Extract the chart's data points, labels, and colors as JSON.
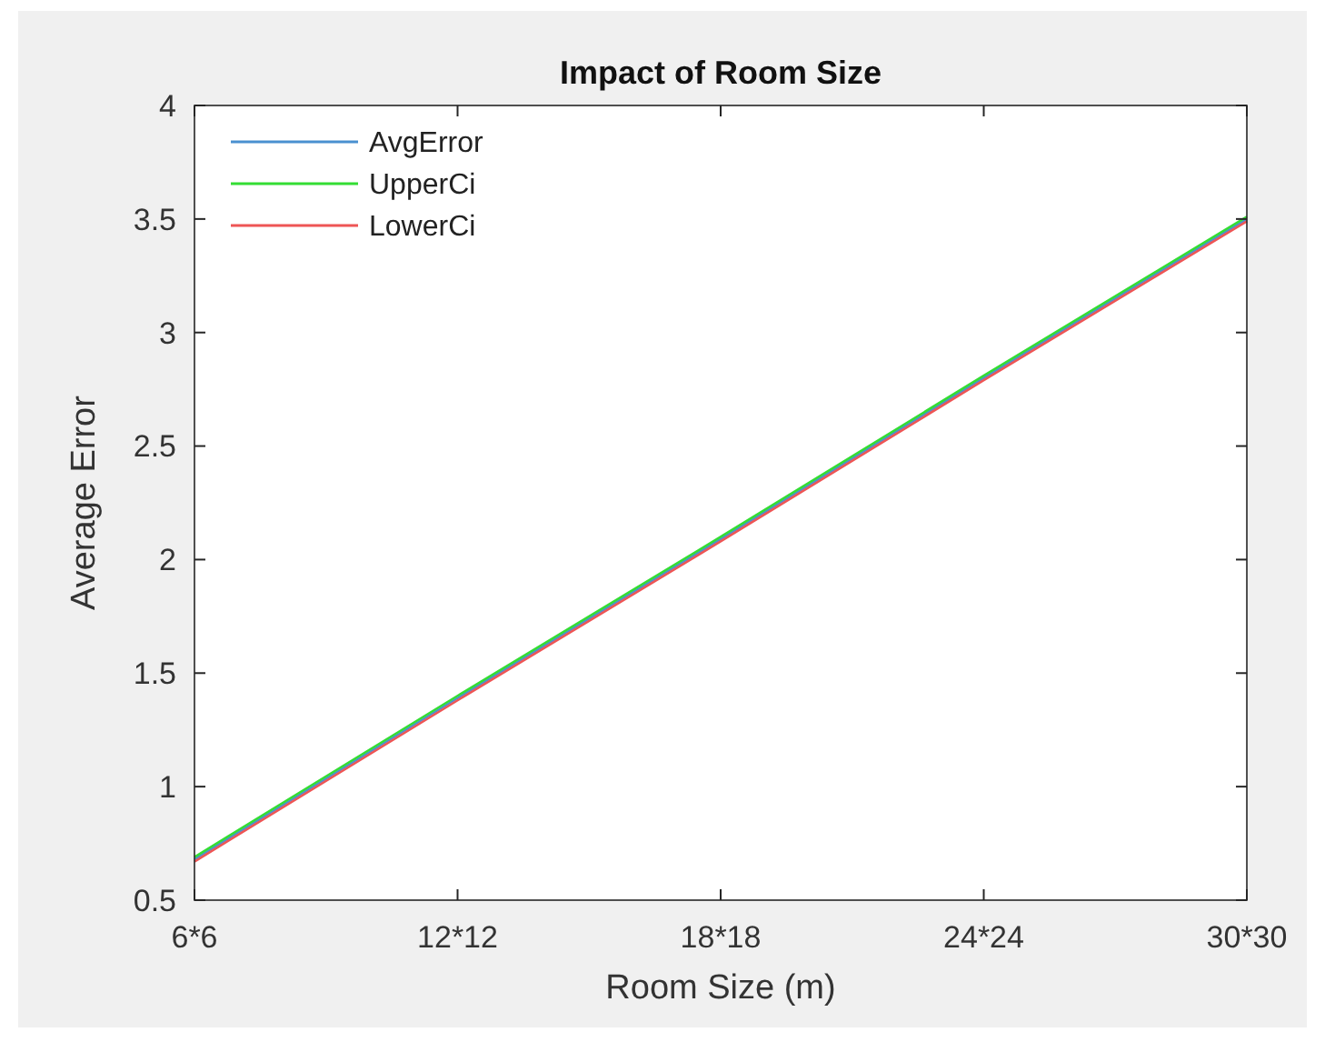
{
  "chart_data": {
    "type": "line",
    "title": "Impact of Room Size",
    "xlabel": "Room Size (m)",
    "ylabel": "Average Error",
    "categories": [
      "6*6",
      "12*12",
      "18*18",
      "24*24",
      "30*30"
    ],
    "series": [
      {
        "name": "AvgError",
        "color": "#4a90d0",
        "values": [
          0.68,
          1.39,
          2.09,
          2.8,
          3.5
        ]
      },
      {
        "name": "UpperCi",
        "color": "#33dd33",
        "values": [
          0.69,
          1.4,
          2.1,
          2.81,
          3.51
        ]
      },
      {
        "name": "LowerCi",
        "color": "#ee5555",
        "values": [
          0.67,
          1.38,
          2.08,
          2.79,
          3.49
        ]
      }
    ],
    "ylim": [
      0.5,
      4
    ],
    "yticks": [
      0.5,
      1,
      1.5,
      2,
      2.5,
      3,
      3.5,
      4
    ],
    "grid": false,
    "legend": "top left",
    "marker": "none",
    "line_style": "solid"
  }
}
